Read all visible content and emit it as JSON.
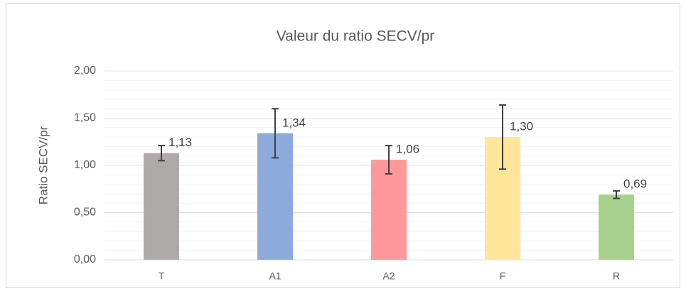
{
  "chart_data": {
    "type": "bar",
    "title": "Valeur du ratio SECV/pr",
    "y_label": "Ratio SECV/pr",
    "categories": [
      "T",
      "A1",
      "A2",
      "F",
      "R"
    ],
    "values": [
      1.13,
      1.34,
      1.06,
      1.3,
      0.69
    ],
    "value_labels": [
      "1,13",
      "1,34",
      "1,06",
      "1,30",
      "0,69"
    ],
    "errors": [
      0.08,
      0.26,
      0.15,
      0.34,
      0.04
    ],
    "colors": [
      "#aeaaaa",
      "#8eaadb",
      "#ff9999",
      "#ffe699",
      "#a9d18e"
    ],
    "ylim": [
      0,
      2
    ],
    "yticks": [
      {
        "value": 0,
        "label": "0,00"
      },
      {
        "value": 0.5,
        "label": "0,50"
      },
      {
        "value": 1,
        "label": "1,00"
      },
      {
        "value": 1.5,
        "label": "1,50"
      },
      {
        "value": 2,
        "label": "2,00"
      }
    ],
    "minor_yticks": [
      0.1,
      0.2,
      0.3,
      0.4,
      0.6,
      0.7,
      0.8,
      0.9,
      1.1,
      1.2,
      1.3,
      1.4,
      1.6,
      1.7,
      1.8,
      1.9
    ],
    "grid": true
  }
}
